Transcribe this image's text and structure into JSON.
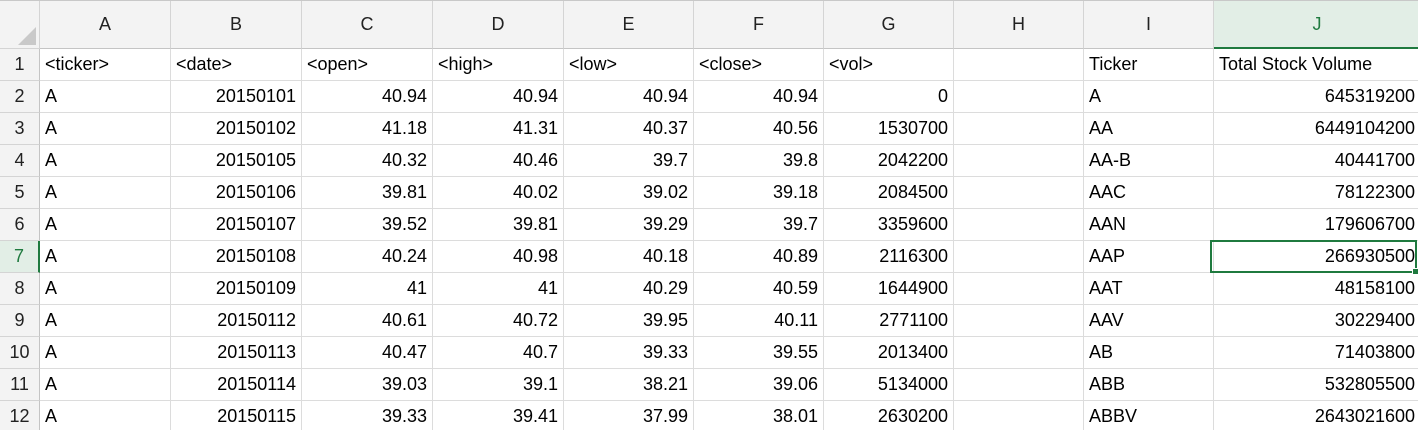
{
  "columns": [
    "A",
    "B",
    "C",
    "D",
    "E",
    "F",
    "G",
    "H",
    "I",
    "J"
  ],
  "active_column": "J",
  "active_row": 7,
  "column_types": [
    "text",
    "num",
    "num",
    "num",
    "num",
    "num",
    "num",
    "text",
    "text",
    "num"
  ],
  "rows": [
    {
      "n": "1",
      "cells": [
        "<ticker>",
        "<date>",
        "<open>",
        "<high>",
        "<low>",
        "<close>",
        "<vol>",
        "",
        "Ticker",
        "Total Stock Volume"
      ]
    },
    {
      "n": "2",
      "cells": [
        "A",
        "20150101",
        "40.94",
        "40.94",
        "40.94",
        "40.94",
        "0",
        "",
        "A",
        "645319200"
      ]
    },
    {
      "n": "3",
      "cells": [
        "A",
        "20150102",
        "41.18",
        "41.31",
        "40.37",
        "40.56",
        "1530700",
        "",
        "AA",
        "6449104200"
      ]
    },
    {
      "n": "4",
      "cells": [
        "A",
        "20150105",
        "40.32",
        "40.46",
        "39.7",
        "39.8",
        "2042200",
        "",
        "AA-B",
        "40441700"
      ]
    },
    {
      "n": "5",
      "cells": [
        "A",
        "20150106",
        "39.81",
        "40.02",
        "39.02",
        "39.18",
        "2084500",
        "",
        "AAC",
        "78122300"
      ]
    },
    {
      "n": "6",
      "cells": [
        "A",
        "20150107",
        "39.52",
        "39.81",
        "39.29",
        "39.7",
        "3359600",
        "",
        "AAN",
        "179606700"
      ]
    },
    {
      "n": "7",
      "cells": [
        "A",
        "20150108",
        "40.24",
        "40.98",
        "40.18",
        "40.89",
        "2116300",
        "",
        "AAP",
        "266930500"
      ]
    },
    {
      "n": "8",
      "cells": [
        "A",
        "20150109",
        "41",
        "41",
        "40.29",
        "40.59",
        "1644900",
        "",
        "AAT",
        "48158100"
      ]
    },
    {
      "n": "9",
      "cells": [
        "A",
        "20150112",
        "40.61",
        "40.72",
        "39.95",
        "40.11",
        "2771100",
        "",
        "AAV",
        "30229400"
      ]
    },
    {
      "n": "10",
      "cells": [
        "A",
        "20150113",
        "40.47",
        "40.7",
        "39.33",
        "39.55",
        "2013400",
        "",
        "AB",
        "71403800"
      ]
    },
    {
      "n": "11",
      "cells": [
        "A",
        "20150114",
        "39.03",
        "39.1",
        "38.21",
        "39.06",
        "5134000",
        "",
        "ABB",
        "532805500"
      ]
    },
    {
      "n": "12",
      "cells": [
        "A",
        "20150115",
        "39.33",
        "39.41",
        "37.99",
        "38.01",
        "2630200",
        "",
        "ABBV",
        "2643021600"
      ]
    }
  ],
  "colors": {
    "accent": "#1f7a3f",
    "header_bg": "#f3f3f3",
    "active_header_bg": "#e2eee6"
  }
}
